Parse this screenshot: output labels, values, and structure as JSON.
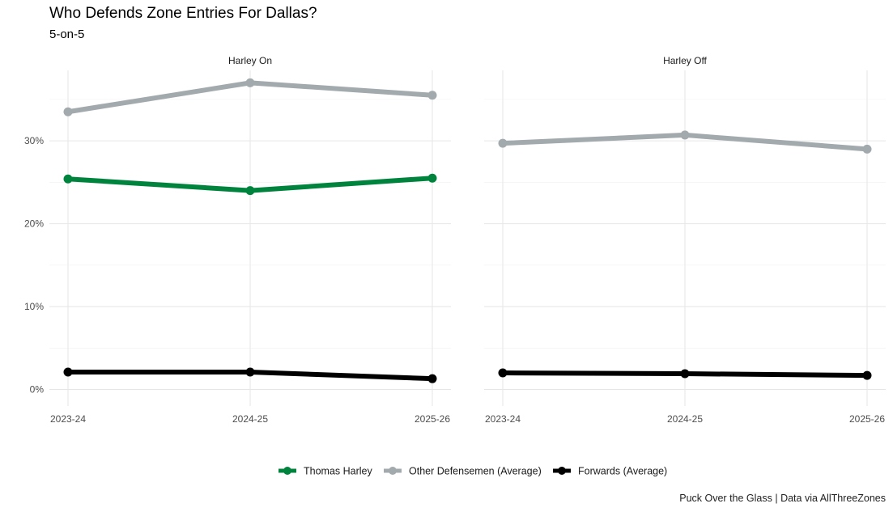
{
  "title": "Who Defends Zone Entries For Dallas?",
  "subtitle": "5-on-5",
  "caption": "Puck Over the Glass   |   Data via AllThreeZones",
  "chart_data": {
    "type": "line",
    "x": [
      "2023-24",
      "2024-25",
      "2025-26"
    ],
    "ylim": [
      -2,
      38.5
    ],
    "yticks": [
      0,
      10,
      20,
      30
    ],
    "ytick_labels": [
      "0%",
      "10%",
      "20%",
      "30%"
    ],
    "grid": true,
    "legend_position": "bottom",
    "panels": [
      {
        "label": "Harley On",
        "series": [
          {
            "name": "Thomas Harley",
            "color": "#00843D",
            "values": [
              25.4,
              24.0,
              25.5
            ]
          },
          {
            "name": "Other Defensemen (Average)",
            "color": "#A2AAAD",
            "values": [
              33.5,
              37.0,
              35.5
            ]
          },
          {
            "name": "Forwards (Average)",
            "color": "#000000",
            "values": [
              2.1,
              2.1,
              1.3
            ]
          }
        ]
      },
      {
        "label": "Harley Off",
        "series": [
          {
            "name": "Other Defensemen (Average)",
            "color": "#A2AAAD",
            "values": [
              29.7,
              30.7,
              29.0
            ]
          },
          {
            "name": "Forwards (Average)",
            "color": "#000000",
            "values": [
              2.0,
              1.9,
              1.7
            ]
          }
        ]
      }
    ],
    "legend": [
      {
        "name": "Thomas Harley",
        "color": "#00843D"
      },
      {
        "name": "Other Defensemen (Average)",
        "color": "#A2AAAD"
      },
      {
        "name": "Forwards (Average)",
        "color": "#000000"
      }
    ]
  }
}
